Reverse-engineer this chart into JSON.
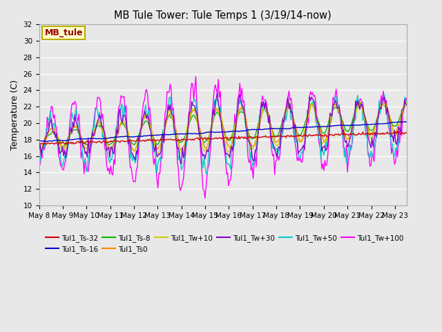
{
  "title": "MB Tule Tower: Tule Temps 1 (3/19/14-now)",
  "ylabel": "Temperature (C)",
  "xlabel": "",
  "ylim": [
    10,
    32
  ],
  "yticks": [
    10,
    12,
    14,
    16,
    18,
    20,
    22,
    24,
    26,
    28,
    30,
    32
  ],
  "bg_color": "#e8e8e8",
  "plot_bg_color": "#e8e8e8",
  "legend_label": "MB_tule",
  "series_colors": {
    "Tul1_Ts-32": "#cc0000",
    "Tul1_Ts-16": "#0000cc",
    "Tul1_Ts-8": "#00bb00",
    "Tul1_Ts0": "#ff8800",
    "Tul1_Tw+10": "#cccc00",
    "Tul1_Tw+30": "#8800cc",
    "Tul1_Tw+50": "#00cccc",
    "Tul1_Tw+100": "#ff00ff"
  },
  "date_labels": [
    "May 8",
    "May 9",
    "May 10",
    "May 11",
    "May 12",
    "May 13",
    "May 14",
    "May 15",
    "May 16",
    "May 17",
    "May 18",
    "May 19",
    "May 20",
    "May 21",
    "May 22",
    "May 23"
  ]
}
